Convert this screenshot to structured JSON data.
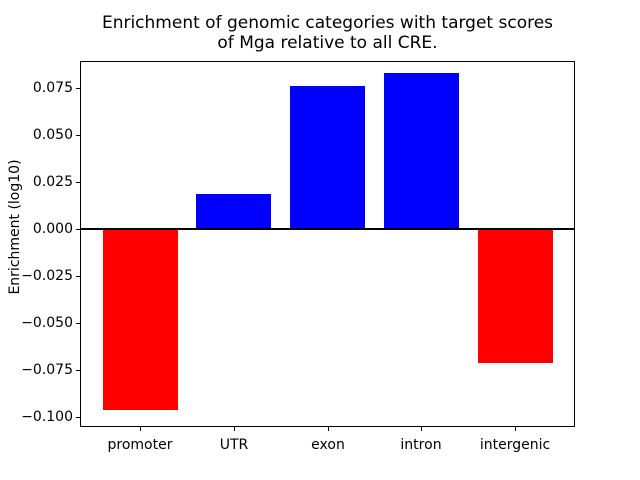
{
  "figure": {
    "title_line1": "Enrichment of genomic categories with target scores",
    "title_line2": "of Mga relative to all CRE.",
    "ylabel": "Enrichment (log10)"
  },
  "chart_data": {
    "type": "bar",
    "title": "Enrichment of genomic categories with target scores\nof Mga relative to all CRE.",
    "xlabel": "",
    "ylabel": "Enrichment (log10)",
    "categories": [
      "promoter",
      "UTR",
      "exon",
      "intron",
      "intergenic"
    ],
    "values": [
      -0.096,
      0.019,
      0.076,
      0.083,
      -0.071
    ],
    "bar_colors": [
      "#ff0000",
      "#0000ff",
      "#0000ff",
      "#0000ff",
      "#ff0000"
    ],
    "positive_color": "#0000ff",
    "negative_color": "#ff0000",
    "ylim": [
      -0.1052,
      0.0895
    ],
    "yticks": [
      0.075,
      0.05,
      0.025,
      0.0,
      -0.025,
      -0.05,
      -0.075,
      -0.1
    ],
    "ytick_labels": [
      "0.075",
      "0.050",
      "0.025",
      "0.000",
      "−0.025",
      "−0.050",
      "−0.075",
      "−0.100"
    ],
    "grid": false,
    "legend": null,
    "zero_line": true,
    "background_color": "#ffffff",
    "text_color": "#000000"
  }
}
